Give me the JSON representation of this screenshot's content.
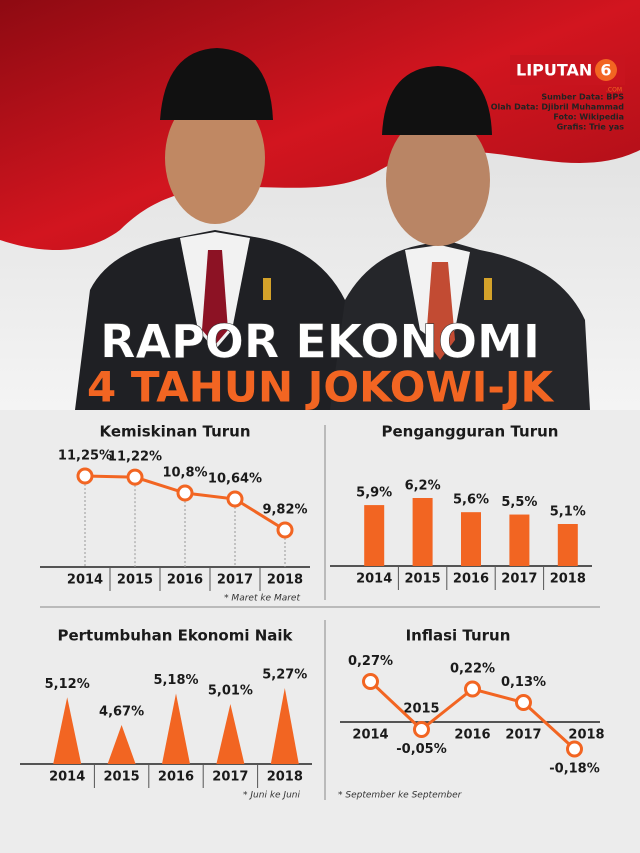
{
  "header": {
    "logo": "LIPUTAN",
    "logo_mark": "6",
    "logo_sub": ".COM",
    "credits": [
      "Sumber Data: BPS",
      "Olah Data: Djibril Muhammad",
      "Foto: Wikipedia",
      "Grafis: Trie yas"
    ],
    "title": "RAPOR EKONOMI",
    "subtitle": "4 TAHUN JOKOWI-JK"
  },
  "chart_data": [
    {
      "type": "line",
      "title": "Kemiskinan Turun",
      "categories": [
        "2014",
        "2015",
        "2016",
        "2017",
        "2018"
      ],
      "values": [
        11.25,
        11.22,
        10.8,
        10.64,
        9.82
      ],
      "value_labels": [
        "11,25%",
        "11,22%",
        "10,8%",
        "10,64%",
        "9,82%"
      ],
      "note": "* Maret ke Maret",
      "color": "#f26522"
    },
    {
      "type": "bar",
      "title": "Pengangguran Turun",
      "categories": [
        "2014",
        "2015",
        "2016",
        "2017",
        "2018"
      ],
      "values": [
        5.9,
        6.2,
        5.6,
        5.5,
        5.1
      ],
      "value_labels": [
        "5,9%",
        "6,2%",
        "5,6%",
        "5,5%",
        "5,1%"
      ],
      "color": "#f26522"
    },
    {
      "type": "triangle",
      "title": "Pertumbuhan Ekonomi Naik",
      "categories": [
        "2014",
        "2015",
        "2016",
        "2017",
        "2018"
      ],
      "values": [
        5.12,
        4.67,
        5.18,
        5.01,
        5.27
      ],
      "value_labels": [
        "5,12%",
        "4,67%",
        "5,18%",
        "5,01%",
        "5,27%"
      ],
      "note": "* Juni ke Juni",
      "color": "#f26522"
    },
    {
      "type": "line",
      "title": "Inflasi Turun",
      "categories": [
        "2014",
        "2015",
        "2016",
        "2017",
        "2018"
      ],
      "values": [
        0.27,
        -0.05,
        0.22,
        0.13,
        -0.18
      ],
      "value_labels": [
        "0,27%",
        "-0,05%",
        "0,22%",
        "0,13%",
        "-0,18%"
      ],
      "note": "* September ke September",
      "color": "#f26522",
      "zero_line": true
    }
  ]
}
